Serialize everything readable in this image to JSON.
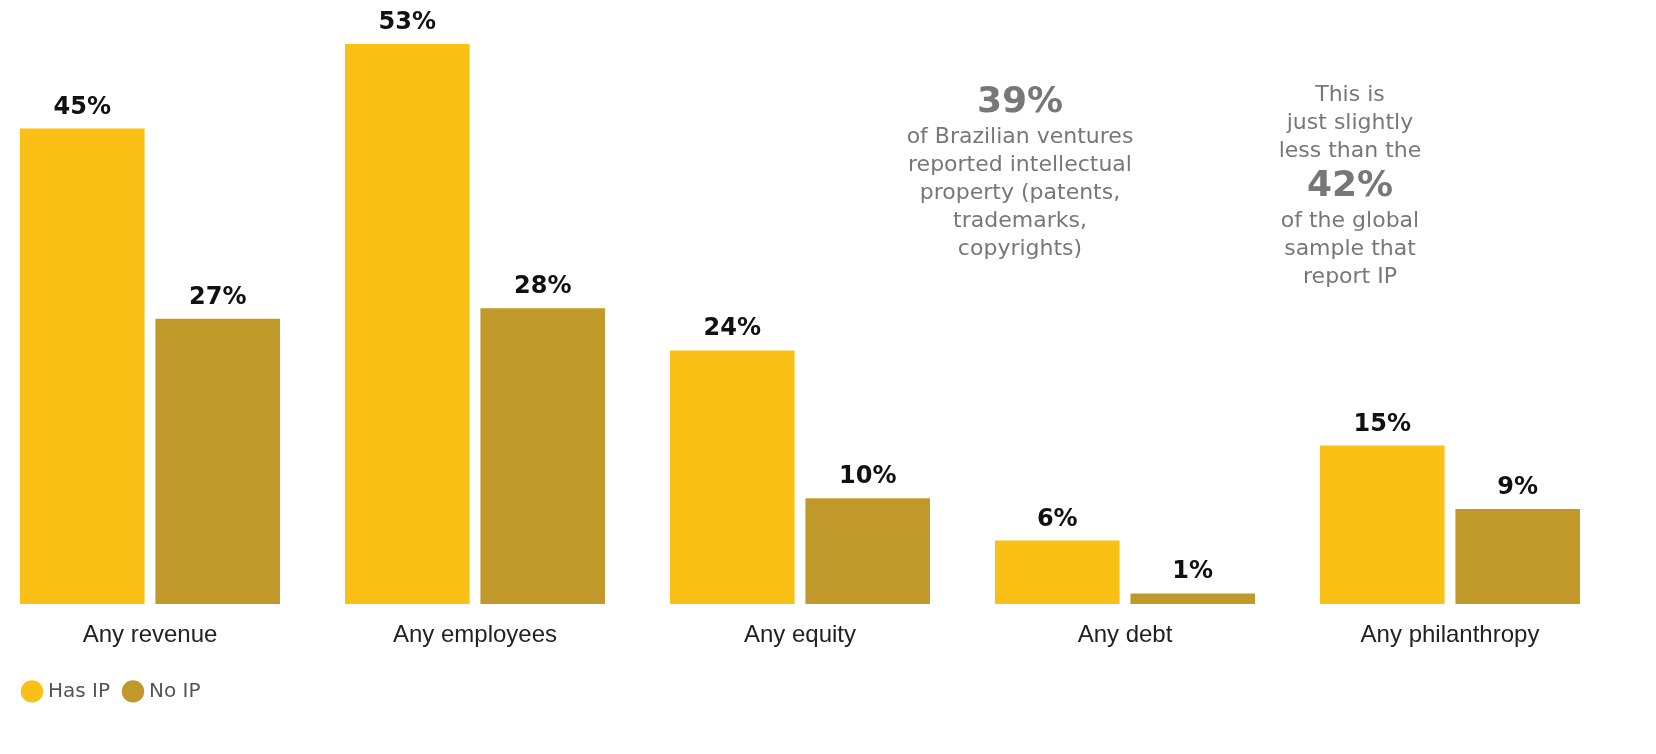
{
  "chart_data": {
    "type": "bar",
    "categories": [
      "Any revenue",
      "Any employees",
      "Any equity",
      "Any debt",
      "Any philanthropy"
    ],
    "series": [
      {
        "name": "Has IP",
        "color": "#fbc015",
        "values": [
          45,
          53,
          24,
          6,
          15
        ],
        "value_labels": [
          "45%",
          "53%",
          "24%",
          "6%",
          "15%"
        ]
      },
      {
        "name": "No IP",
        "color": "#c1982a",
        "values": [
          27,
          28,
          10,
          1,
          9
        ],
        "value_labels": [
          "27%",
          "28%",
          "10%",
          "1%",
          "9%"
        ]
      }
    ],
    "legend": "bottom left",
    "annotations": [
      "39%\nof Brazilian ventures\nreported intellectual\nproperty (patents,\ntrademarks,\ncopyrights)",
      "This is\njust slightly\nless than the\n42%\nof the global\nsample that\nreport IP"
    ]
  }
}
